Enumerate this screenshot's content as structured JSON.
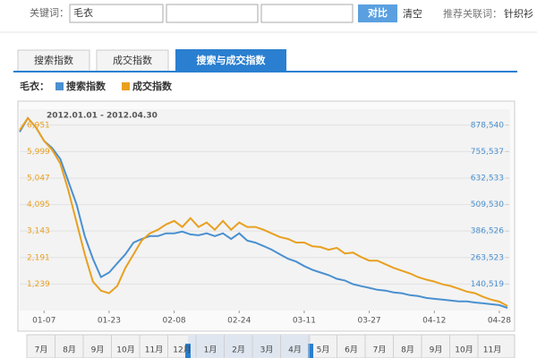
{
  "search": {
    "label": "关键词：",
    "keyword": "毛衣",
    "button": "对比",
    "clear": "清空",
    "related_label": "推荐关联词：",
    "related": "针织衫"
  },
  "tabs": [
    "搜索指数",
    "成交指数",
    "搜索与成交指数"
  ],
  "timeline": {
    "months": [
      "7月",
      "8月",
      "9月",
      "10月",
      "11月",
      "12月",
      "1月",
      "2月",
      "3月",
      "4月",
      "5月",
      "6月",
      "7月",
      "8月",
      "9月",
      "10月",
      "11月"
    ]
  },
  "chart_data": {
    "type": "line",
    "legend_title": "毛衣：",
    "subtitle": "2012.01.01 - 2012.04.30",
    "grid": true,
    "categories": [
      null,
      null,
      null,
      "01-07",
      null,
      null,
      null,
      null,
      null,
      null,
      null,
      "01-23",
      null,
      null,
      null,
      null,
      null,
      null,
      null,
      "02-08",
      null,
      null,
      null,
      null,
      null,
      null,
      null,
      "02-24",
      null,
      null,
      null,
      null,
      null,
      null,
      null,
      "03-11",
      null,
      null,
      null,
      null,
      null,
      null,
      null,
      "03-27",
      null,
      null,
      null,
      null,
      null,
      null,
      null,
      "04-12",
      null,
      null,
      null,
      null,
      null,
      null,
      null,
      "04-28",
      null
    ],
    "ylim": [
      287,
      7522
    ],
    "yticks": [
      {
        "value": 1239,
        "label": "1,239"
      },
      {
        "value": 2191,
        "label": "2,191"
      },
      {
        "value": 3143,
        "label": "3,143"
      },
      {
        "value": 4095,
        "label": "4,095"
      },
      {
        "value": 5047,
        "label": "5,047"
      },
      {
        "value": 5999,
        "label": "5,999"
      },
      {
        "value": 6951,
        "label": "6,951"
      }
    ],
    "y2lim": [
      17516,
      952339
    ],
    "y2ticks": [
      {
        "value": 140519,
        "label": "140,519"
      },
      {
        "value": 263523,
        "label": "263,523"
      },
      {
        "value": 386526,
        "label": "386,526"
      },
      {
        "value": 509530,
        "label": "509,530"
      },
      {
        "value": 632533,
        "label": "632,533"
      },
      {
        "value": 755537,
        "label": "755,537"
      },
      {
        "value": 878540,
        "label": "878,540"
      }
    ],
    "series": [
      {
        "name": "搜索指数",
        "color": "#4a90d0",
        "axis": "y2",
        "values": [
          847000,
          911000,
          868000,
          805000,
          772000,
          721000,
          616000,
          510000,
          363000,
          258000,
          173000,
          194000,
          237000,
          279000,
          333000,
          350000,
          363000,
          363000,
          376000,
          376000,
          384000,
          371000,
          367000,
          376000,
          363000,
          376000,
          350000,
          376000,
          342000,
          333000,
          317000,
          300000,
          279000,
          258000,
          245000,
          224000,
          207000,
          194000,
          182000,
          165000,
          157000,
          140000,
          131000,
          123000,
          114000,
          110000,
          102000,
          98000,
          89000,
          85000,
          76000,
          72000,
          68000,
          64000,
          60000,
          60000,
          55000,
          51000,
          47000,
          43000,
          30000
        ]
      },
      {
        "name": "成交指数",
        "color": "#e8a020",
        "axis": "y",
        "values": [
          6770,
          7200,
          6870,
          6380,
          6060,
          5570,
          4590,
          3450,
          2310,
          1330,
          1000,
          910,
          1170,
          1820,
          2310,
          2800,
          3060,
          3190,
          3380,
          3510,
          3290,
          3610,
          3290,
          3450,
          3190,
          3510,
          3190,
          3450,
          3290,
          3290,
          3190,
          3060,
          2930,
          2860,
          2730,
          2730,
          2600,
          2570,
          2470,
          2540,
          2340,
          2370,
          2210,
          2080,
          2080,
          1950,
          1820,
          1720,
          1620,
          1490,
          1400,
          1330,
          1230,
          1170,
          1070,
          970,
          910,
          780,
          680,
          610,
          450
        ]
      }
    ]
  }
}
